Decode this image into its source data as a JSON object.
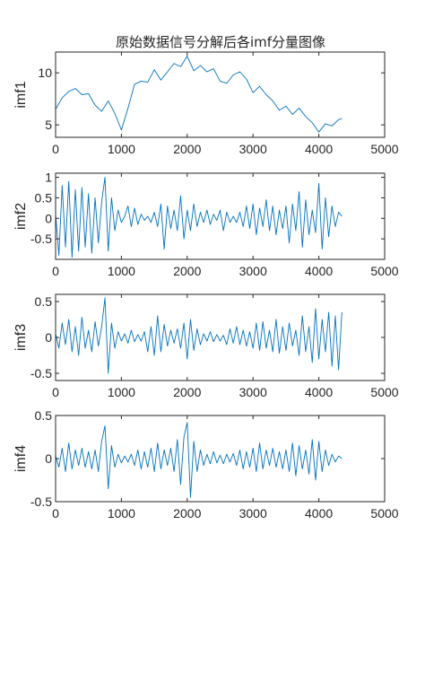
{
  "page_title": "原始数据信号分解后各imf分量图像",
  "line_color": "#0072BD",
  "axis_color": "#262626",
  "chart_data": [
    {
      "type": "line",
      "ylabel": "imf1",
      "xlim": [
        0,
        5000
      ],
      "ylim": [
        3.8,
        12
      ],
      "xticks": [
        0,
        1000,
        2000,
        3000,
        4000,
        5000
      ],
      "xtick_labels": [
        "0",
        "1000",
        "2000",
        "3000",
        "4000",
        "5000"
      ],
      "yticks": [
        5,
        10
      ],
      "ytick_labels": [
        "5",
        "10"
      ],
      "series": [
        {
          "x": [
            0,
            100,
            200,
            300,
            400,
            500,
            600,
            700,
            800,
            900,
            1000,
            1100,
            1200,
            1300,
            1400,
            1500,
            1600,
            1700,
            1800,
            1900,
            2000,
            2100,
            2200,
            2300,
            2400,
            2500,
            2600,
            2700,
            2800,
            2900,
            3000,
            3100,
            3200,
            3300,
            3400,
            3500,
            3600,
            3700,
            3800,
            3900,
            4000,
            4100,
            4200,
            4300,
            4350
          ],
          "y": [
            6.5,
            7.6,
            8.2,
            8.5,
            7.9,
            8.0,
            6.9,
            6.3,
            7.3,
            6.1,
            4.5,
            6.6,
            8.9,
            9.2,
            9.1,
            10.3,
            9.3,
            10.1,
            10.9,
            10.6,
            11.6,
            10.2,
            10.7,
            10.1,
            10.4,
            9.2,
            9.0,
            9.8,
            10.1,
            9.4,
            8.1,
            8.7,
            7.9,
            7.3,
            6.4,
            6.8,
            6.0,
            6.6,
            5.8,
            5.2,
            4.3,
            5.1,
            4.9,
            5.5,
            5.6
          ]
        }
      ]
    },
    {
      "type": "line",
      "ylabel": "imf2",
      "xlim": [
        0,
        5000
      ],
      "ylim": [
        -1.0,
        1.1
      ],
      "xticks": [
        0,
        1000,
        2000,
        3000,
        4000,
        5000
      ],
      "xtick_labels": [
        "0",
        "1000",
        "2000",
        "3000",
        "4000",
        "5000"
      ],
      "yticks": [
        1,
        0.5,
        0,
        -0.5
      ],
      "ytick_labels": [
        "1",
        "0.5",
        "0",
        "-0.5"
      ],
      "series": [
        {
          "x": [
            0,
            50,
            100,
            150,
            200,
            250,
            300,
            350,
            400,
            450,
            500,
            550,
            600,
            650,
            700,
            750,
            800,
            850,
            900,
            950,
            1000,
            1050,
            1100,
            1150,
            1200,
            1250,
            1300,
            1350,
            1400,
            1450,
            1500,
            1550,
            1600,
            1650,
            1700,
            1750,
            1800,
            1850,
            1900,
            1950,
            2000,
            2050,
            2100,
            2150,
            2200,
            2250,
            2300,
            2350,
            2400,
            2450,
            2500,
            2550,
            2600,
            2650,
            2700,
            2750,
            2800,
            2850,
            2900,
            2950,
            3000,
            3050,
            3100,
            3150,
            3200,
            3250,
            3300,
            3350,
            3400,
            3450,
            3500,
            3550,
            3600,
            3650,
            3700,
            3750,
            3800,
            3850,
            3900,
            3950,
            4000,
            4050,
            4100,
            4150,
            4200,
            4250,
            4300,
            4350
          ],
          "y": [
            0.1,
            -0.9,
            0.8,
            -0.7,
            0.9,
            -0.95,
            0.7,
            -0.8,
            0.75,
            -0.7,
            0.6,
            -0.85,
            0.5,
            -0.6,
            0.4,
            1.0,
            -0.8,
            0.5,
            -0.3,
            0.2,
            -0.1,
            0.05,
            0.3,
            -0.2,
            0.25,
            -0.15,
            0.1,
            -0.05,
            0.05,
            -0.1,
            0.15,
            -0.2,
            0.35,
            -0.75,
            0.3,
            -0.25,
            0.2,
            -0.3,
            0.55,
            -0.5,
            0.2,
            -0.3,
            0.35,
            -0.2,
            0.15,
            -0.1,
            0.2,
            -0.15,
            0.1,
            -0.05,
            0.2,
            -0.3,
            0.15,
            -0.1,
            0.05,
            -0.1,
            0.15,
            -0.2,
            0.3,
            -0.25,
            0.35,
            -0.4,
            0.25,
            -0.2,
            0.45,
            -0.3,
            0.3,
            -0.4,
            0.2,
            -0.25,
            0.3,
            -0.6,
            0.35,
            -0.3,
            0.65,
            -0.7,
            0.45,
            -0.4,
            0.2,
            -0.35,
            0.85,
            -0.75,
            0.5,
            -0.45,
            0.3,
            -0.2,
            0.15,
            0.05
          ]
        }
      ]
    },
    {
      "type": "line",
      "ylabel": "imf3",
      "xlim": [
        0,
        5000
      ],
      "ylim": [
        -0.6,
        0.6
      ],
      "xticks": [
        0,
        1000,
        2000,
        3000,
        4000,
        5000
      ],
      "xtick_labels": [
        "0",
        "1000",
        "2000",
        "3000",
        "4000",
        "5000"
      ],
      "yticks": [
        0.5,
        0,
        -0.5
      ],
      "ytick_labels": [
        "0.5",
        "0",
        "-0.5"
      ],
      "series": [
        {
          "x": [
            0,
            50,
            100,
            150,
            200,
            250,
            300,
            350,
            400,
            450,
            500,
            550,
            600,
            650,
            700,
            750,
            800,
            850,
            900,
            950,
            1000,
            1050,
            1100,
            1150,
            1200,
            1250,
            1300,
            1350,
            1400,
            1450,
            1500,
            1550,
            1600,
            1650,
            1700,
            1750,
            1800,
            1850,
            1900,
            1950,
            2000,
            2050,
            2100,
            2150,
            2200,
            2250,
            2300,
            2350,
            2400,
            2450,
            2500,
            2550,
            2600,
            2650,
            2700,
            2750,
            2800,
            2850,
            2900,
            2950,
            3000,
            3050,
            3100,
            3150,
            3200,
            3250,
            3300,
            3350,
            3400,
            3450,
            3500,
            3550,
            3600,
            3650,
            3700,
            3750,
            3800,
            3850,
            3900,
            3950,
            4000,
            4050,
            4100,
            4150,
            4200,
            4250,
            4300,
            4350
          ],
          "y": [
            0.05,
            -0.15,
            0.2,
            -0.1,
            0.25,
            -0.2,
            0.15,
            -0.25,
            0.28,
            -0.15,
            0.1,
            -0.2,
            0.22,
            -0.12,
            0.15,
            0.55,
            -0.5,
            0.2,
            -0.15,
            0.08,
            -0.05,
            0.05,
            -0.08,
            0.1,
            -0.06,
            0.04,
            -0.05,
            0.08,
            -0.2,
            0.15,
            -0.25,
            0.3,
            -0.2,
            0.18,
            -0.12,
            0.1,
            -0.08,
            0.12,
            -0.15,
            0.2,
            -0.3,
            0.25,
            -0.18,
            0.12,
            -0.1,
            0.05,
            -0.05,
            0.08,
            -0.06,
            0.04,
            -0.05,
            0.03,
            -0.1,
            0.12,
            -0.08,
            0.15,
            -0.1,
            0.1,
            -0.12,
            0.08,
            -0.15,
            0.2,
            -0.18,
            0.22,
            -0.15,
            0.1,
            -0.2,
            0.25,
            -0.22,
            0.15,
            -0.18,
            0.2,
            -0.12,
            0.1,
            -0.25,
            0.3,
            -0.2,
            0.15,
            -0.35,
            0.4,
            -0.3,
            0.25,
            -0.2,
            0.35,
            -0.4,
            0.3,
            -0.45,
            0.35
          ]
        }
      ]
    },
    {
      "type": "line",
      "ylabel": "imf4",
      "xlim": [
        0,
        5000
      ],
      "ylim": [
        -0.5,
        0.5
      ],
      "xticks": [
        0,
        1000,
        2000,
        3000,
        4000,
        5000
      ],
      "xtick_labels": [
        "0",
        "1000",
        "2000",
        "3000",
        "4000",
        "5000"
      ],
      "yticks": [
        0.5,
        0,
        -0.5
      ],
      "ytick_labels": [
        "0.5",
        "0",
        "-0.5"
      ],
      "series": [
        {
          "x": [
            0,
            50,
            100,
            150,
            200,
            250,
            300,
            350,
            400,
            450,
            500,
            550,
            600,
            650,
            700,
            750,
            800,
            850,
            900,
            950,
            1000,
            1050,
            1100,
            1150,
            1200,
            1250,
            1300,
            1350,
            1400,
            1450,
            1500,
            1550,
            1600,
            1650,
            1700,
            1750,
            1800,
            1850,
            1900,
            1950,
            2000,
            2050,
            2100,
            2150,
            2200,
            2250,
            2300,
            2350,
            2400,
            2450,
            2500,
            2550,
            2600,
            2650,
            2700,
            2750,
            2800,
            2850,
            2900,
            2950,
            3000,
            3050,
            3100,
            3150,
            3200,
            3250,
            3300,
            3350,
            3400,
            3450,
            3500,
            3550,
            3600,
            3650,
            3700,
            3750,
            3800,
            3850,
            3900,
            3950,
            4000,
            4050,
            4100,
            4150,
            4200,
            4250,
            4300,
            4350
          ],
          "y": [
            0.03,
            -0.1,
            0.12,
            -0.15,
            0.18,
            -0.12,
            0.1,
            -0.08,
            0.12,
            -0.1,
            0.08,
            -0.12,
            0.1,
            -0.15,
            0.2,
            0.38,
            -0.35,
            0.15,
            -0.1,
            0.05,
            -0.05,
            0.03,
            -0.04,
            0.05,
            -0.08,
            0.1,
            -0.12,
            0.08,
            -0.1,
            0.12,
            -0.15,
            0.18,
            -0.12,
            0.1,
            -0.08,
            0.12,
            -0.15,
            0.22,
            -0.3,
            0.25,
            0.42,
            -0.45,
            0.2,
            -0.15,
            0.1,
            -0.08,
            0.05,
            -0.06,
            0.08,
            -0.05,
            0.04,
            -0.06,
            0.05,
            -0.04,
            0.06,
            -0.08,
            0.1,
            -0.12,
            0.08,
            -0.1,
            0.12,
            -0.15,
            0.18,
            -0.12,
            0.1,
            -0.08,
            0.12,
            -0.1,
            0.08,
            -0.12,
            0.1,
            -0.15,
            0.18,
            -0.2,
            0.15,
            -0.12,
            0.1,
            -0.18,
            0.22,
            -0.25,
            0.2,
            -0.15,
            0.1,
            -0.08,
            0.05,
            -0.04,
            0.03,
            0.0
          ]
        }
      ]
    }
  ]
}
